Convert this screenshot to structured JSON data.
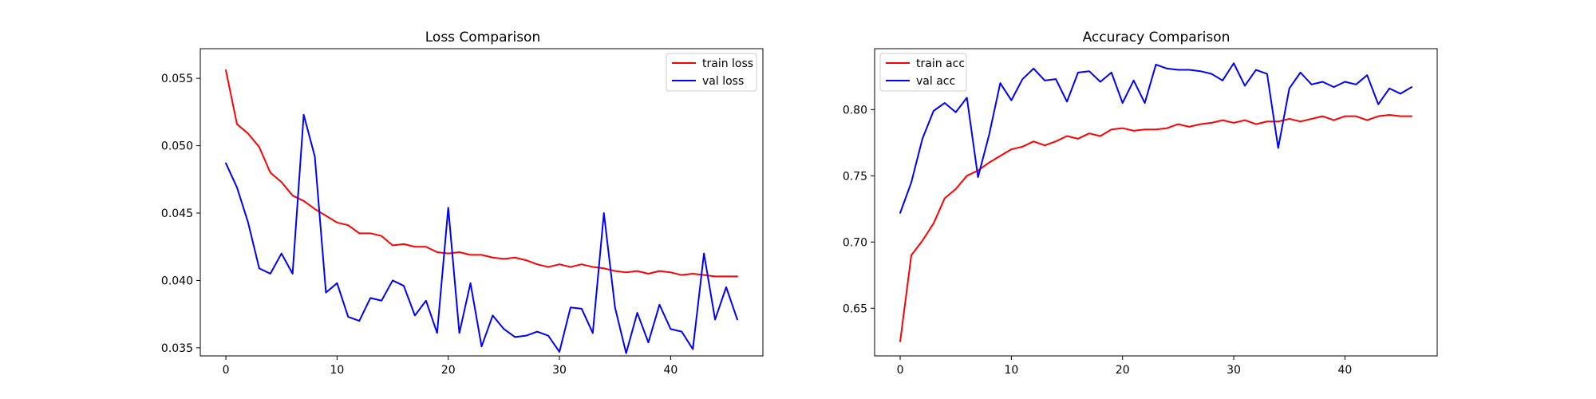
{
  "chart_data": [
    {
      "type": "line",
      "title": "Loss Comparison",
      "xlabel": "",
      "ylabel": "",
      "xlim": [
        -2.3,
        48.3
      ],
      "ylim": [
        0.0344,
        0.0572
      ],
      "xticks": [
        0,
        10,
        20,
        30,
        40
      ],
      "yticks": [
        0.035,
        0.04,
        0.045,
        0.05,
        0.055
      ],
      "ytick_labels": [
        "0.035",
        "0.040",
        "0.045",
        "0.050",
        "0.055"
      ],
      "grid": false,
      "legend": "top-right",
      "series": [
        {
          "name": "train loss",
          "color": "#ff0000",
          "values": [
            0.0556,
            0.0516,
            0.0509,
            0.0499,
            0.048,
            0.0473,
            0.0463,
            0.0459,
            0.0453,
            0.0448,
            0.0443,
            0.0441,
            0.0435,
            0.0435,
            0.0433,
            0.0426,
            0.0427,
            0.0425,
            0.0425,
            0.0421,
            0.042,
            0.0421,
            0.0419,
            0.0419,
            0.0417,
            0.0416,
            0.0417,
            0.0415,
            0.0412,
            0.041,
            0.0412,
            0.041,
            0.0412,
            0.041,
            0.0409,
            0.0407,
            0.0406,
            0.0407,
            0.0405,
            0.0407,
            0.0406,
            0.0404,
            0.0405,
            0.0404,
            0.0403,
            0.0403,
            0.0403
          ]
        },
        {
          "name": "val loss",
          "color": "#0000ff",
          "values": [
            0.0487,
            0.0469,
            0.0443,
            0.0409,
            0.0405,
            0.042,
            0.0405,
            0.0523,
            0.0492,
            0.0391,
            0.0398,
            0.0373,
            0.037,
            0.0387,
            0.0385,
            0.04,
            0.0396,
            0.0374,
            0.0385,
            0.0361,
            0.0454,
            0.0361,
            0.0398,
            0.0351,
            0.0374,
            0.0364,
            0.0358,
            0.0359,
            0.0362,
            0.0359,
            0.0347,
            0.038,
            0.0379,
            0.0361,
            0.045,
            0.038,
            0.0346,
            0.0376,
            0.0354,
            0.0382,
            0.0364,
            0.0362,
            0.0349,
            0.042,
            0.0371,
            0.0395,
            0.0371
          ]
        }
      ]
    },
    {
      "type": "line",
      "title": "Accuracy Comparison",
      "xlabel": "",
      "ylabel": "",
      "xlim": [
        -2.3,
        48.3
      ],
      "ylim": [
        0.614,
        0.846
      ],
      "xticks": [
        0,
        10,
        20,
        30,
        40
      ],
      "yticks": [
        0.65,
        0.7,
        0.75,
        0.8
      ],
      "ytick_labels": [
        "0.65",
        "0.70",
        "0.75",
        "0.80"
      ],
      "grid": false,
      "legend": "top-left",
      "series": [
        {
          "name": "train acc",
          "color": "#ff0000",
          "values": [
            0.625,
            0.69,
            0.701,
            0.714,
            0.733,
            0.74,
            0.75,
            0.754,
            0.76,
            0.765,
            0.77,
            0.772,
            0.776,
            0.773,
            0.776,
            0.78,
            0.778,
            0.782,
            0.78,
            0.785,
            0.786,
            0.784,
            0.785,
            0.785,
            0.786,
            0.789,
            0.787,
            0.789,
            0.79,
            0.792,
            0.79,
            0.792,
            0.789,
            0.791,
            0.791,
            0.793,
            0.791,
            0.793,
            0.795,
            0.792,
            0.795,
            0.795,
            0.792,
            0.795,
            0.796,
            0.795,
            0.795
          ]
        },
        {
          "name": "val acc",
          "color": "#0000ff",
          "values": [
            0.722,
            0.745,
            0.778,
            0.799,
            0.805,
            0.798,
            0.809,
            0.749,
            0.781,
            0.82,
            0.807,
            0.823,
            0.831,
            0.822,
            0.823,
            0.806,
            0.828,
            0.829,
            0.821,
            0.828,
            0.805,
            0.822,
            0.805,
            0.834,
            0.831,
            0.83,
            0.83,
            0.829,
            0.827,
            0.822,
            0.835,
            0.818,
            0.83,
            0.827,
            0.771,
            0.816,
            0.828,
            0.819,
            0.821,
            0.817,
            0.821,
            0.819,
            0.826,
            0.804,
            0.816,
            0.812,
            0.817
          ]
        }
      ]
    }
  ]
}
